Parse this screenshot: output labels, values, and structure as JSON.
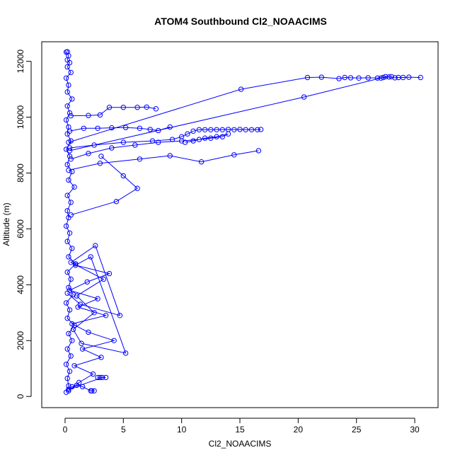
{
  "chart_data": {
    "type": "line",
    "title": "ATOM4 Southbound Cl2_NOAACIMS",
    "xlabel": "Cl2_NOAACIMS",
    "ylabel": "Altitude (m)",
    "xlim": [
      -2,
      32
    ],
    "ylim": [
      -400,
      12700
    ],
    "xticks": [
      "0",
      "5",
      "10",
      "15",
      "20",
      "25",
      "30"
    ],
    "xtick_values": [
      0,
      5,
      10,
      15,
      20,
      25,
      30
    ],
    "yticks": [
      "0",
      "2000",
      "4000",
      "6000",
      "8000",
      "10000",
      "12000"
    ],
    "ytick_values": [
      0,
      2000,
      4000,
      6000,
      8000,
      10000,
      12000
    ],
    "grid": false,
    "series": [
      {
        "color": "#0000ff",
        "marker": "open-circle",
        "x": [
          0.1,
          0.3,
          0.2,
          0.4,
          0.1,
          0.5,
          0.2,
          0.6,
          0.3,
          0.8,
          0.2,
          0.4,
          0.1,
          0.7,
          0.3,
          0.5,
          0.2,
          0.9,
          0.3,
          0.6,
          0.2,
          0.4,
          0.1,
          0.3,
          0.2,
          0.5,
          0.2,
          0.8,
          0.3,
          0.6,
          0.2,
          0.4,
          0.1,
          0.5,
          0.2,
          0.3,
          0.1,
          0.4,
          0.2,
          0.6,
          0.2,
          0.3,
          0.1,
          0.5,
          0.2,
          0.4,
          0.2,
          0.3,
          0.1,
          0.2
        ],
        "y": [
          150,
          380,
          650,
          900,
          1150,
          1450,
          1700,
          2000,
          2250,
          2550,
          2800,
          3100,
          3350,
          3650,
          3900,
          4200,
          4450,
          4750,
          5000,
          5300,
          5550,
          5850,
          6100,
          6400,
          6650,
          6950,
          7200,
          7500,
          7750,
          8050,
          8300,
          8600,
          8850,
          9150,
          9400,
          9650,
          9900,
          10150,
          10400,
          10650,
          10900,
          11150,
          11400,
          11600,
          11800,
          11950,
          12050,
          12200,
          12330,
          12340
        ]
      },
      {
        "color": "#0000ff",
        "marker": "open-circle",
        "x": [
          0.3,
          1.2,
          2.4,
          0.8,
          3.1,
          1.5,
          4.2,
          2.0,
          0.6,
          3.5,
          1.1,
          2.8,
          0.4,
          1.9,
          3.8,
          0.9,
          2.2,
          5.2,
          1.4,
          0.7,
          2.5,
          1.0,
          3.3,
          0.5,
          2.6,
          4.7,
          1.3,
          0.2
        ],
        "y": [
          200,
          500,
          800,
          1100,
          1400,
          1700,
          2000,
          2300,
          2600,
          2900,
          3200,
          3500,
          3800,
          4100,
          4400,
          4700,
          5000,
          1550,
          1900,
          2400,
          3000,
          3600,
          4200,
          4800,
          5400,
          2900,
          3300,
          3700
        ]
      },
      {
        "color": "#0000ff",
        "marker": "open-circle",
        "x": [
          2.5,
          2.3,
          2.2,
          1.5,
          1.0,
          0.6,
          0.3,
          3.2,
          3.0,
          2.8,
          3.5
        ],
        "y": [
          200,
          200,
          200,
          350,
          400,
          350,
          250,
          680,
          680,
          680,
          680
        ]
      },
      {
        "color": "#0000ff",
        "marker": "open-circle",
        "x": [
          0.5,
          4.4,
          6.2,
          5.0,
          3.1
        ],
        "y": [
          6500,
          6980,
          7450,
          7900,
          8600
        ]
      },
      {
        "color": "#0000ff",
        "marker": "open-circle",
        "x": [
          0.3,
          3.0,
          6.4,
          9.0,
          11.7,
          14.5,
          16.6
        ],
        "y": [
          8100,
          8350,
          8500,
          8620,
          8400,
          8650,
          8800
        ]
      },
      {
        "color": "#0000ff",
        "marker": "open-circle",
        "x": [
          0.4,
          2.5,
          5.0,
          7.5,
          9.2,
          10.0,
          10.5,
          11.0,
          11.5,
          12.0,
          12.5,
          13.0,
          13.5,
          14.0,
          14.5,
          15.0,
          15.5,
          16.0,
          16.5,
          16.8
        ],
        "y": [
          8900,
          9000,
          9100,
          9150,
          9200,
          9300,
          9400,
          9500,
          9550,
          9550,
          9550,
          9550,
          9550,
          9560,
          9550,
          9560,
          9550,
          9550,
          9550,
          9560
        ]
      },
      {
        "color": "#0000ff",
        "marker": "open-circle",
        "x": [
          0.5,
          2.0,
          4.0,
          6.0,
          8.0,
          10.0,
          11.5,
          12.5,
          13.5,
          14.0,
          13.0,
          12.0,
          11.0,
          10.3
        ],
        "y": [
          8500,
          8700,
          8900,
          9000,
          9100,
          9150,
          9200,
          9250,
          9300,
          9400,
          9300,
          9250,
          9150,
          9100
        ]
      },
      {
        "color": "#0000ff",
        "marker": "open-circle",
        "x": [
          0.4,
          1.6,
          2.8,
          4.0,
          5.2,
          6.4,
          7.3,
          8.0,
          9.0
        ],
        "y": [
          9500,
          9600,
          9600,
          9620,
          9630,
          9600,
          9560,
          9520,
          9650
        ]
      },
      {
        "color": "#0000ff",
        "marker": "open-circle",
        "x": [
          0.5,
          2.0,
          3.0,
          3.8,
          5.0,
          6.2,
          7.0,
          7.8
        ],
        "y": [
          10050,
          10060,
          10080,
          10350,
          10350,
          10350,
          10360,
          10300
        ]
      },
      {
        "color": "#0000ff",
        "marker": "open-circle",
        "x": [
          0.3,
          15.1,
          20.8,
          22.0,
          23.5,
          24.0,
          24.5,
          25.2,
          26.0,
          26.8,
          27.3,
          27.5,
          27.8,
          28.3,
          28.6,
          29.0,
          29.5,
          30.5
        ],
        "y": [
          9100,
          11000,
          11420,
          11430,
          11380,
          11420,
          11410,
          11400,
          11410,
          11400,
          11420,
          11450,
          11440,
          11410,
          11420,
          11420,
          11430,
          11420
        ]
      },
      {
        "color": "#0000ff",
        "marker": "open-circle",
        "x": [
          0.4,
          20.5,
          27.1,
          28.0
        ],
        "y": [
          8800,
          10720,
          11400,
          11450
        ]
      }
    ]
  }
}
